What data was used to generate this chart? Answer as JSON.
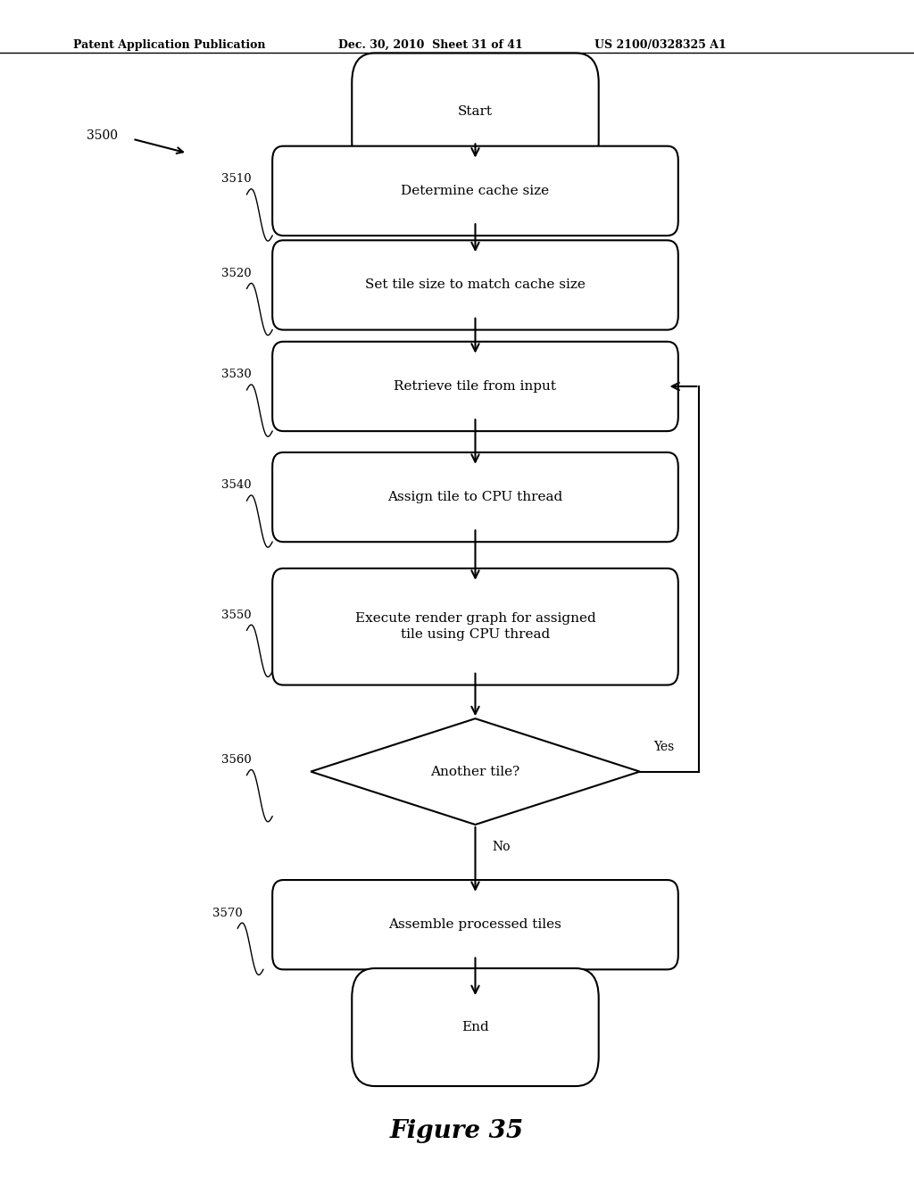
{
  "header_left": "Patent Application Publication",
  "header_mid": "Dec. 30, 2010  Sheet 31 of 41",
  "header_right": "US 2100/0328325 A1",
  "figure_label": "Figure 35",
  "background_color": "#ffffff",
  "line_color": "#000000",
  "text_color": "#000000"
}
